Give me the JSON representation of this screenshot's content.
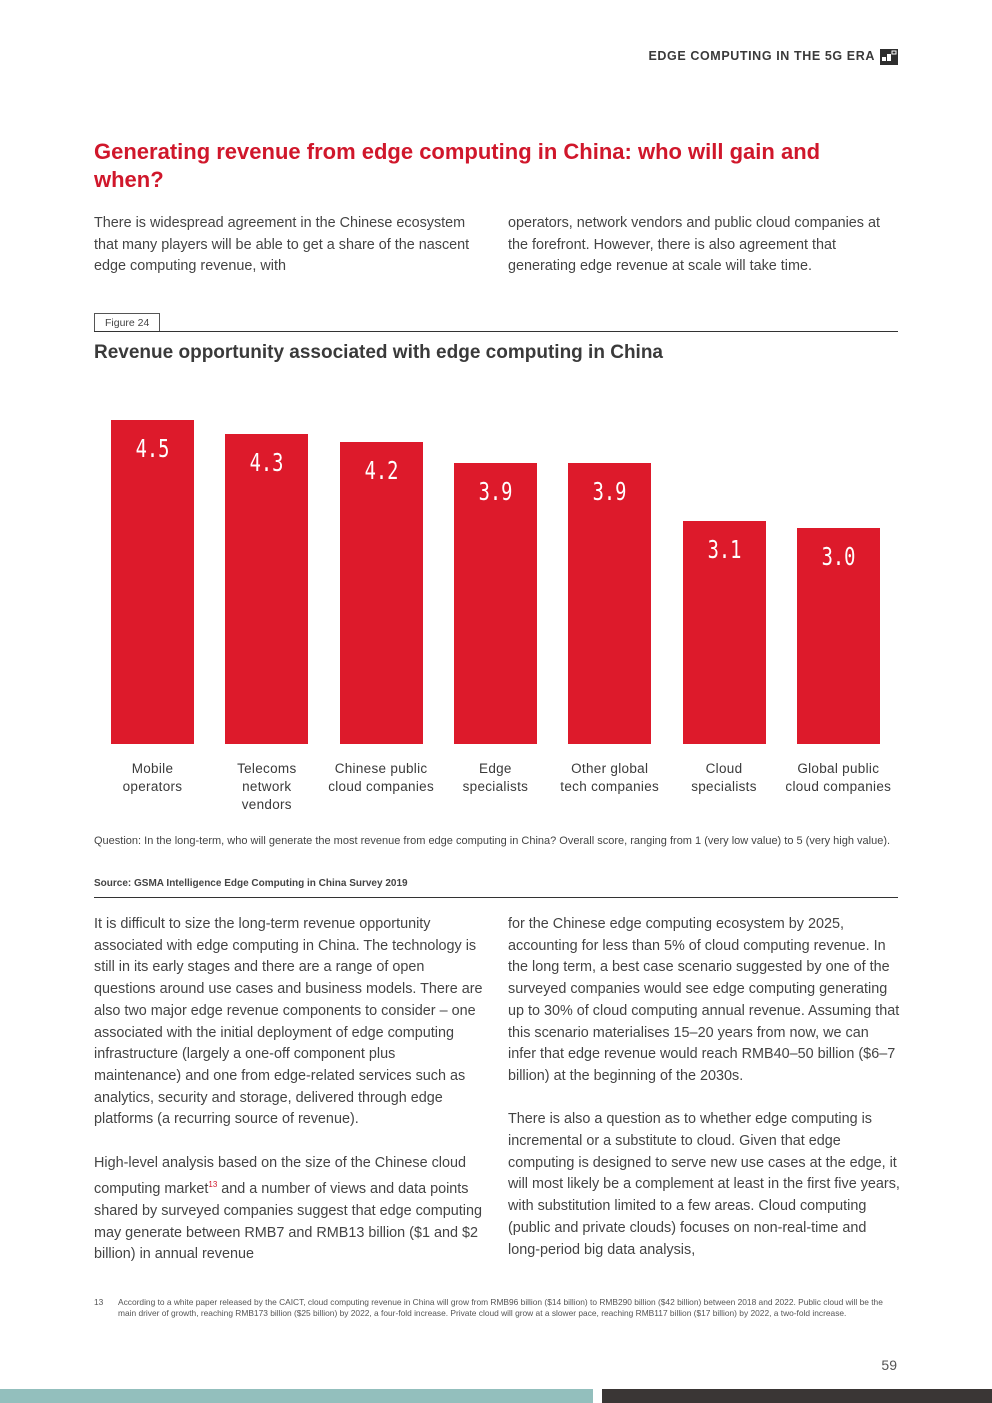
{
  "header": {
    "title": "EDGE COMPUTING IN THE 5G ERA",
    "icon": "section-icon"
  },
  "title": "Generating revenue from edge computing in China: who will gain and when?",
  "intro": {
    "col1": "There is widespread agreement in the Chinese ecosystem that many players will be able to get a share of the nascent edge computing revenue, with",
    "col2": "operators, network vendors and public cloud companies at the forefront. However, there is also agreement that generating edge revenue at scale will take time."
  },
  "figure": {
    "tag": "Figure 24",
    "title": "Revenue opportunity associated with edge computing in China",
    "question": "Question: In the long-term, who will generate the most revenue from edge computing in China? Overall score, ranging from 1 (very low value) to 5 (very high value).",
    "source": "Source: GSMA Intelligence Edge Computing in China Survey 2019"
  },
  "chart_data": {
    "type": "bar",
    "categories": [
      "Mobile operators",
      "Telecoms network vendors",
      "Chinese public cloud companies",
      "Edge specialists",
      "Other global tech companies",
      "Cloud specialists",
      "Global public cloud companies"
    ],
    "values": [
      4.5,
      4.3,
      4.2,
      3.9,
      3.9,
      3.1,
      3.0
    ],
    "value_labels": [
      "4.5",
      "4.3",
      "4.2",
      "3.9",
      "3.9",
      "3.1",
      "3.0"
    ],
    "bar_color": "#dd1a2b",
    "grid": false
  },
  "body": {
    "left_p1": "It is difficult to size the long-term revenue opportunity associated with edge computing in China. The technology is still in its early stages and there are a range of open questions around use cases and business models. There are also two major edge revenue components to consider – one associated with the initial deployment of edge computing infrastructure (largely a one-off component plus maintenance) and one from edge-related services such as analytics, security and storage, delivered through edge platforms (a recurring source of revenue).",
    "left_p2a": "High-level analysis based on the size of the Chinese cloud computing market",
    "left_p2_fn": "13",
    "left_p2b": " and a number of views and data points shared by surveyed companies suggest that edge computing may generate between RMB7 and RMB13 billion ($1 and $2 billion) in annual revenue",
    "right_p1": "for the Chinese edge computing ecosystem by 2025, accounting for less than 5% of cloud computing revenue. In the long term, a best case scenario suggested by one of the surveyed companies would see edge computing generating up to 30% of cloud computing annual revenue. Assuming that this scenario materialises 15–20 years from now, we can infer that edge revenue would reach RMB40–50 billion ($6–7 billion) at the beginning of the 2030s.",
    "right_p2": "There is also a question as to whether edge computing is incremental or a substitute to cloud. Given that edge computing is designed to serve new use cases at the edge, it will most likely be a complement at least in the first five years, with substitution limited to a few areas. Cloud computing (public and private clouds) focuses on non-real-time and long-period big data analysis,"
  },
  "footnote": {
    "number": "13",
    "text": "According to a white paper released by the CAICT, cloud computing revenue in China will grow from RMB96 billion ($14 billion) to RMB290 billion ($42 billion) between 2018 and 2022. Public cloud will be the main driver of growth, reaching RMB173 billion ($25 billion) by 2022, a four-fold increase. Private cloud will grow at a slower pace, reaching RMB117 billion ($17 billion) by 2022, a two-fold increase."
  },
  "page_number": "59",
  "colors": {
    "accent": "#d0172b",
    "band_left": "#93bfbd",
    "band_right": "#3a3635"
  }
}
